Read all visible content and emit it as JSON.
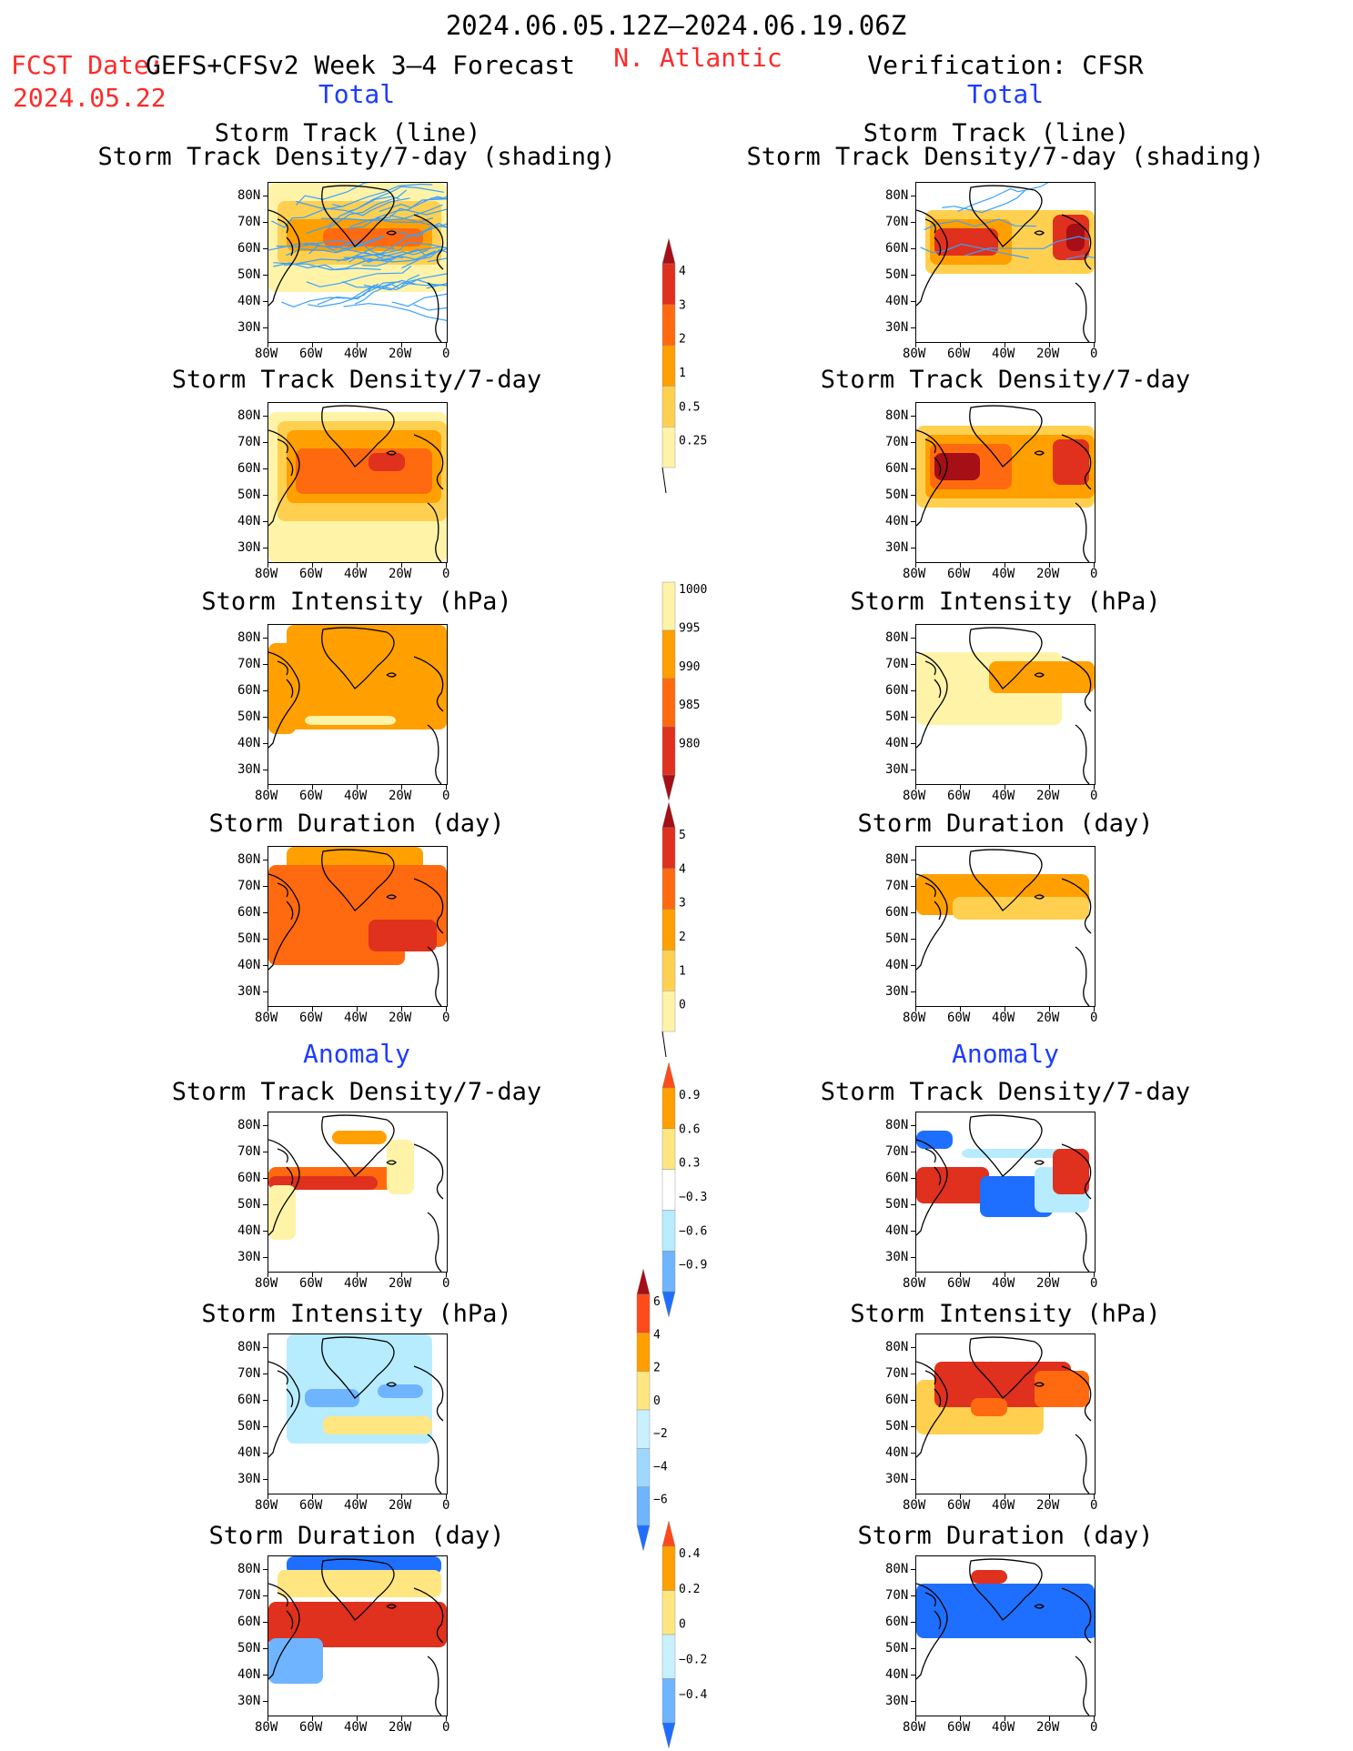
{
  "header": {
    "period": "2024.06.05.12Z–2024.06.19.06Z",
    "fcst_date_label": "FCST Date:",
    "forecast_model": "GEFS+CFSv2 Week 3–4 Forecast",
    "fcst_date": "2024.05.22",
    "region": "N. Atlantic",
    "verification": "Verification: CFSR"
  },
  "sections": {
    "total": "Total",
    "anomaly": "Anomaly"
  },
  "panel_titles": {
    "track_line": "Storm Track (line)",
    "track_shading": "Storm Track Density/7-day (shading)",
    "density": "Storm Track Density/7-day",
    "intensity": "Storm Intensity (hPa)",
    "duration": "Storm Duration (day)"
  },
  "axes": {
    "lat_labels": [
      "80N",
      "70N",
      "60N",
      "50N",
      "40N",
      "30N"
    ],
    "lon_labels": [
      "80W",
      "60W",
      "40W",
      "20W",
      "0"
    ]
  },
  "colorbars": {
    "density_total": {
      "labels": [
        "4",
        "3",
        "2",
        "1",
        "0.5",
        "0.25"
      ],
      "colors": [
        "#a50f15",
        "#e0301e",
        "#ff6a10",
        "#ffa000",
        "#ffd050",
        "#fff3a8"
      ]
    },
    "intensity_total": {
      "labels": [
        "1000",
        "995",
        "990",
        "985",
        "980"
      ],
      "colors": [
        "#fff3a8",
        "#ffa000",
        "#ff6a10",
        "#e0301e",
        "#a50f15"
      ]
    },
    "duration_total": {
      "labels": [
        "5",
        "4",
        "3",
        "2",
        "1",
        "0"
      ],
      "colors": [
        "#a50f15",
        "#e0301e",
        "#ff6a10",
        "#ffa000",
        "#ffd050",
        "#fff3a8"
      ]
    },
    "density_anom": {
      "labels": [
        "0.9",
        "0.6",
        "0.3",
        "−0.3",
        "−0.6",
        "−0.9"
      ],
      "colors": [
        "#ff4a1a",
        "#ffa000",
        "#ffe680",
        "#ffffff",
        "#b7ecff",
        "#6fb4ff",
        "#1e6fff"
      ]
    },
    "intensity_anom": {
      "labels": [
        "6",
        "4",
        "2",
        "0",
        "−2",
        "−4",
        "−6"
      ],
      "colors": [
        "#a50f15",
        "#ff4a1a",
        "#ffa000",
        "#ffe680",
        "#c8f0ff",
        "#9fd8ff",
        "#6fb4ff",
        "#1e6fff"
      ]
    },
    "duration_anom": {
      "labels": [
        "0.4",
        "0.2",
        "0",
        "−0.2",
        "−0.4"
      ],
      "colors": [
        "#ff4a1a",
        "#ffa000",
        "#ffe680",
        "#c8f0ff",
        "#6fb4ff",
        "#1e6fff"
      ]
    }
  },
  "palette": {
    "deep_red": "#a50f15",
    "red": "#e0301e",
    "orange_red": "#ff6a10",
    "orange": "#ffa000",
    "light_orange": "#ffd050",
    "pale_yellow": "#fff3a8",
    "light_blue": "#b7ecff",
    "blue": "#1e6fff",
    "track_line": "#3aa0ff"
  }
}
